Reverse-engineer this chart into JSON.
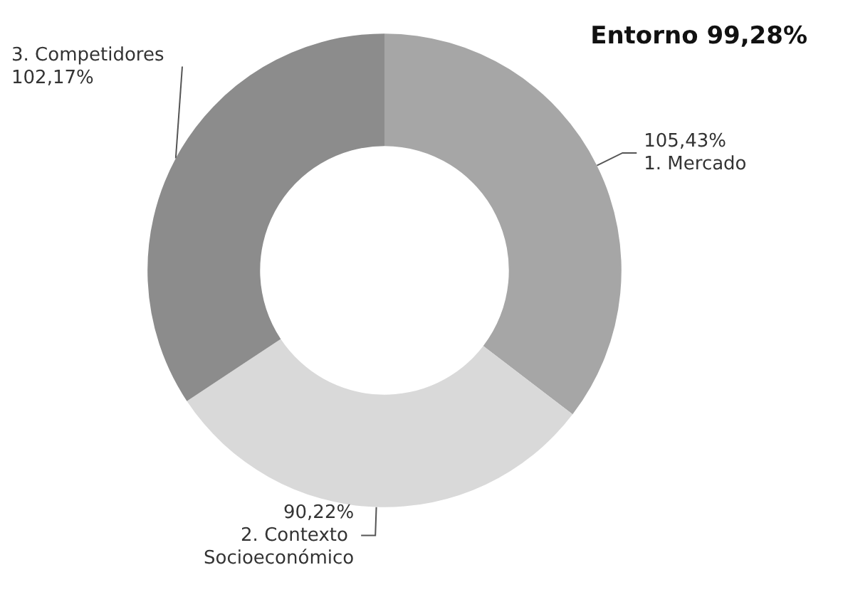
{
  "chart_data": {
    "type": "donut",
    "title": "Entorno 99,28%",
    "categories": [
      "1. Mercado",
      "2. Contexto Socioeconómico",
      "3. Competidores"
    ],
    "values": [
      105.43,
      90.22,
      102.17
    ],
    "value_labels": [
      "105,43%",
      "90,22%",
      "102,17%"
    ],
    "colors": [
      "#a6a6a6",
      "#d9d9d9",
      "#8c8c8c"
    ],
    "legend": false
  }
}
